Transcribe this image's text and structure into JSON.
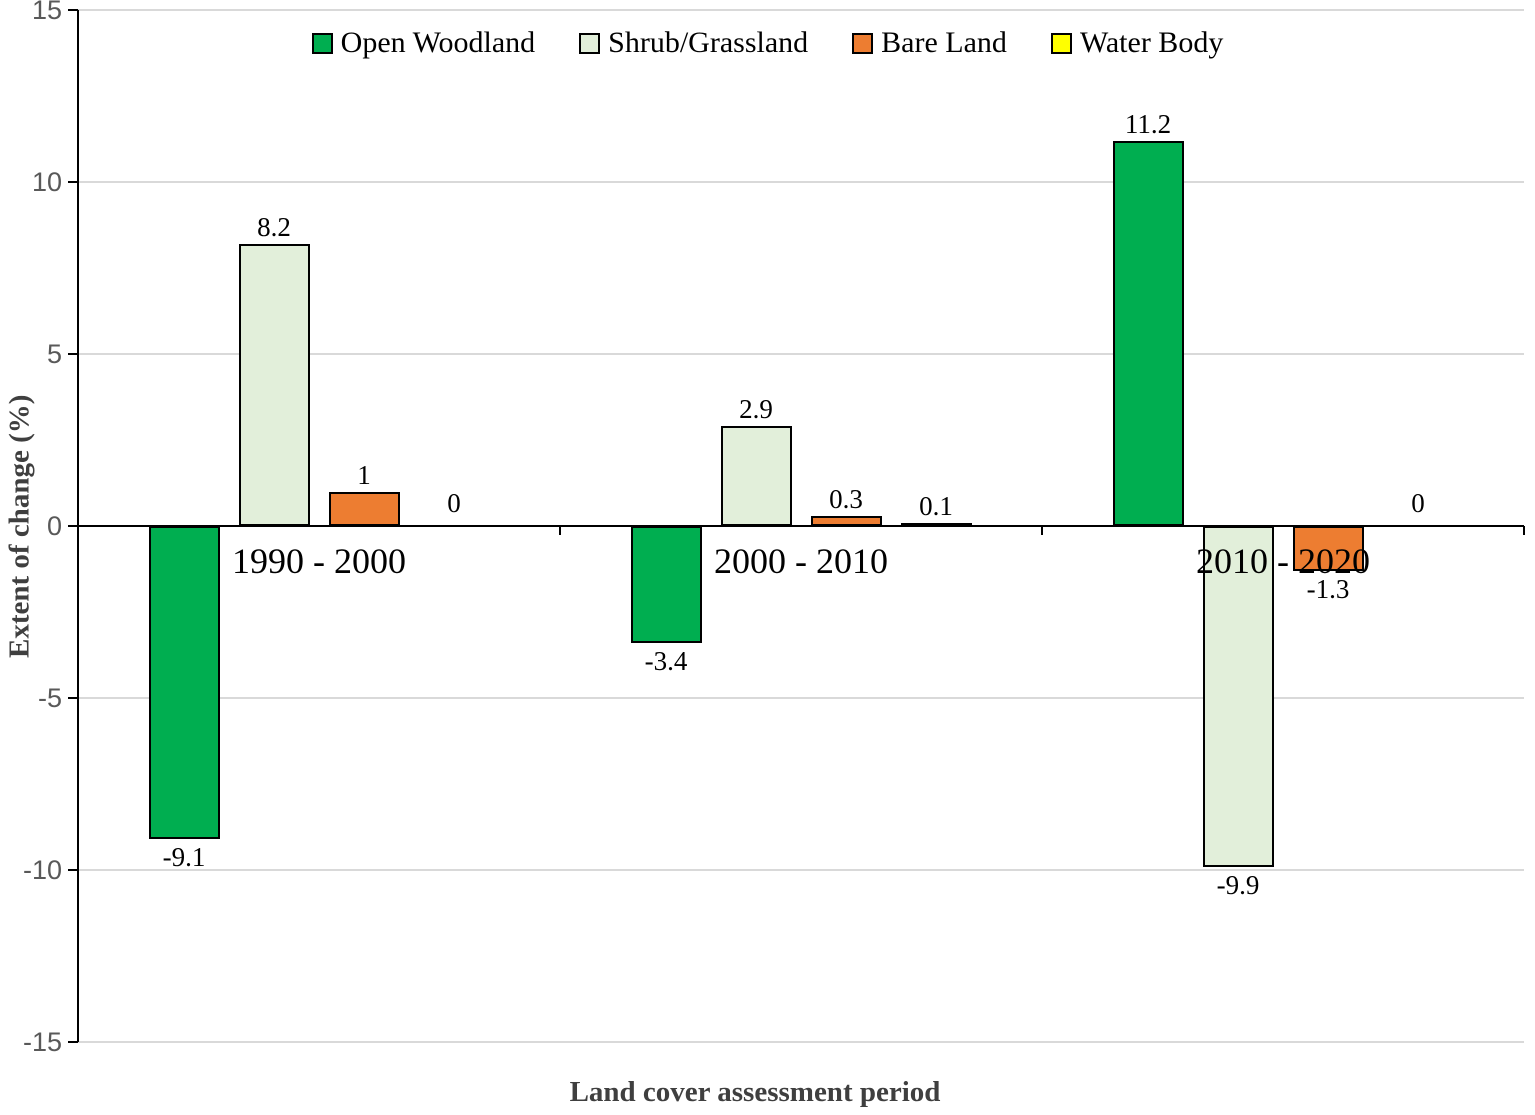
{
  "chart_data": {
    "type": "bar",
    "title": "",
    "categories": [
      "1990 - 2000",
      "2000 - 2010",
      "2010 - 2020"
    ],
    "series": [
      {
        "name": "Open Woodland",
        "color": "#00AE50",
        "values": [
          -9.1,
          -3.4,
          11.2
        ]
      },
      {
        "name": "Shrub/Grassland",
        "color": "#E2EFDA",
        "values": [
          8.2,
          2.9,
          -9.9
        ]
      },
      {
        "name": "Bare Land",
        "color": "#ED7D31",
        "values": [
          1,
          0.3,
          -1.3
        ]
      },
      {
        "name": "Water Body",
        "color": "#FFFF00",
        "values": [
          0,
          0.1,
          0
        ]
      }
    ],
    "xlabel": "Land cover assessment period",
    "ylabel": "Extent of change (%)",
    "ylim": [
      -15,
      15
    ],
    "yticks": [
      15,
      10,
      5,
      0,
      -5,
      -10,
      -15
    ],
    "grid": true,
    "legend_position": "top",
    "colors": {
      "gridline": "#D9D9D9",
      "axis": "#000000",
      "tick_label": "#595959",
      "axis_title": "#3F3F3F",
      "bar_border": "#000000",
      "data_label": "#000000"
    }
  }
}
